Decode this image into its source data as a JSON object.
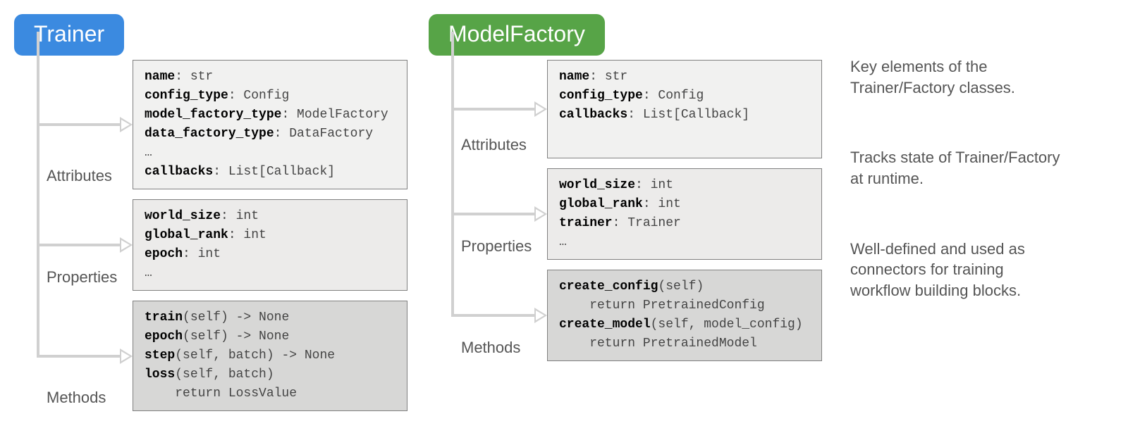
{
  "layout": {
    "box_width_trainer": 390,
    "box_width_mf": 390,
    "rail_width": 158,
    "font_mono_size": 18,
    "font_label_size": 22,
    "font_header_size": 32
  },
  "colors": {
    "trainer_header_bg": "#3b8ae0",
    "mf_header_bg": "#57a447",
    "box_bg_light": "#f1f1f0",
    "box_bg_mid": "#ecebea",
    "box_bg_dark": "#d7d7d6",
    "box_border": "#808080",
    "connector": "#d0d0d0",
    "text_body": "#444444",
    "text_label": "#555555",
    "background": "#ffffff"
  },
  "classes": [
    {
      "id": "trainer",
      "title": "Trainer",
      "header_color": "#3b8ae0",
      "sections": [
        {
          "label": "Attributes",
          "bg": "#f1f1f0",
          "lines": [
            {
              "key": "name",
              "sig": ": str"
            },
            {
              "key": "config_type",
              "sig": ": Config"
            },
            {
              "key": "model_factory_type",
              "sig": ": ModelFactory"
            },
            {
              "key": "data_factory_type",
              "sig": ": DataFactory"
            },
            {
              "plain": "…"
            },
            {
              "key": "callbacks",
              "sig": ": List[Callback]"
            }
          ]
        },
        {
          "label": "Properties",
          "bg": "#ecebea",
          "lines": [
            {
              "key": "world_size",
              "sig": ": int"
            },
            {
              "key": "global_rank",
              "sig": ": int"
            },
            {
              "key": "epoch",
              "sig": ": int"
            },
            {
              "plain": "…"
            }
          ]
        },
        {
          "label": "Methods",
          "bg": "#d7d7d6",
          "lines": [
            {
              "key": "train",
              "sig": "(self) -> None"
            },
            {
              "key": "epoch",
              "sig": "(self) -> None"
            },
            {
              "key": "step",
              "sig": "(self, batch) -> None"
            },
            {
              "key": "loss",
              "sig": "(self, batch)"
            },
            {
              "plain": "    return LossValue"
            }
          ]
        }
      ]
    },
    {
      "id": "model-factory",
      "title": "ModelFactory",
      "header_color": "#57a447",
      "sections": [
        {
          "label": "Attributes",
          "bg": "#f1f1f0",
          "lines": [
            {
              "key": "name",
              "sig": ": str"
            },
            {
              "key": "config_type",
              "sig": ": Config"
            },
            {
              "key": "callbacks",
              "sig": ": List[Callback]"
            }
          ]
        },
        {
          "label": "Properties",
          "bg": "#ecebea",
          "lines": [
            {
              "key": "world_size",
              "sig": ": int"
            },
            {
              "key": "global_rank",
              "sig": ": int"
            },
            {
              "key": "trainer",
              "sig": ": Trainer"
            },
            {
              "plain": "…"
            }
          ]
        },
        {
          "label": "Methods",
          "bg": "#d7d7d6",
          "lines": [
            {
              "key": "create_config",
              "sig": "(self)"
            },
            {
              "plain": "    return PretrainedConfig"
            },
            {
              "key": "create_model",
              "sig": "(self, model_config)"
            },
            {
              "plain": "    return PretrainedModel"
            }
          ]
        }
      ]
    }
  ],
  "captions": [
    "Key elements of the Trainer/Factory classes.",
    "Tracks state of Trainer/Factory at runtime.",
    "Well-defined and used as connectors for training workflow building blocks."
  ]
}
